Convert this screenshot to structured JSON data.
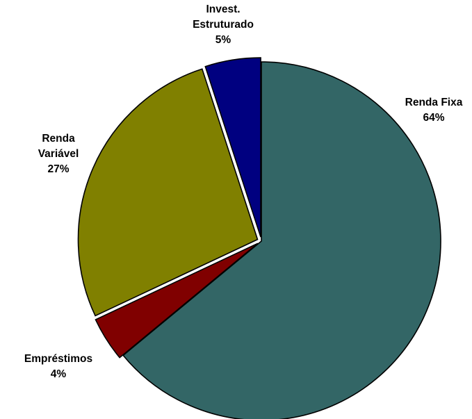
{
  "chart_data": {
    "type": "pie",
    "title": "",
    "slices": [
      {
        "name": "Renda Fixa",
        "label_lines": [
          "Renda Fixa"
        ],
        "percent_label": "64%",
        "value": 64,
        "color": "#336666"
      },
      {
        "name": "Empréstimos",
        "label_lines": [
          "Empréstimos"
        ],
        "percent_label": "4%",
        "value": 4,
        "color": "#800000"
      },
      {
        "name": "Renda Variável",
        "label_lines": [
          "Renda",
          "Variável"
        ],
        "percent_label": "27%",
        "value": 27,
        "color": "#808000"
      },
      {
        "name": "Invest. Estruturado",
        "label_lines": [
          "Invest.",
          "Estruturado"
        ],
        "percent_label": "5%",
        "value": 5,
        "color": "#000080"
      }
    ],
    "legend": "none",
    "labels": "outside"
  }
}
